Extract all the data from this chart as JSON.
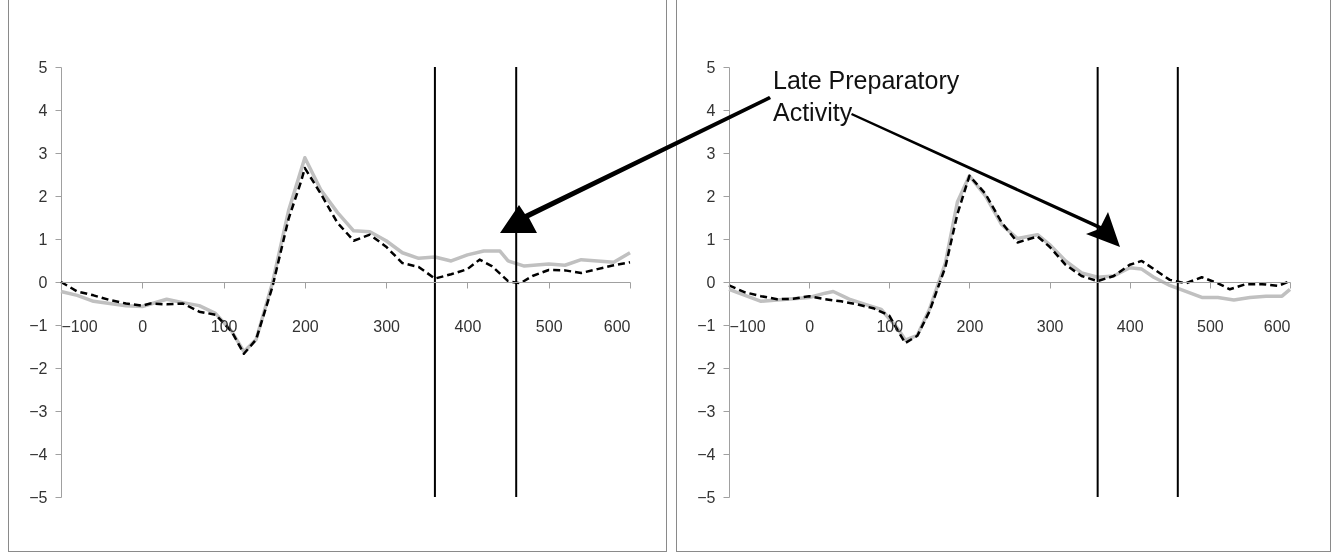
{
  "chart_data": [
    {
      "type": "line",
      "xlim": [
        -100,
        600
      ],
      "xticks": [
        -100,
        0,
        100,
        200,
        300,
        400,
        500,
        600
      ],
      "ylim": [
        -5,
        5
      ],
      "yticks": [
        -5,
        -4,
        -3,
        -2,
        -1,
        0,
        1,
        2,
        3,
        4,
        5
      ],
      "grid": false,
      "ref_lines": [
        {
          "axis": "x",
          "value": 360,
          "color": "#000000"
        },
        {
          "axis": "x",
          "value": 460,
          "color": "#000000"
        }
      ],
      "series": [
        {
          "color": "#c0c0c0",
          "line_style": "solid",
          "x": [
            -100,
            -80,
            -60,
            -40,
            -20,
            0,
            30,
            50,
            70,
            90,
            110,
            125,
            140,
            160,
            180,
            200,
            220,
            240,
            260,
            280,
            300,
            320,
            340,
            360,
            380,
            400,
            420,
            440,
            450,
            470,
            500,
            520,
            540,
            560,
            580,
            600
          ],
          "values": [
            -0.22,
            -0.31,
            -0.45,
            -0.5,
            -0.55,
            -0.57,
            -0.4,
            -0.48,
            -0.55,
            -0.73,
            -1.15,
            -1.62,
            -1.34,
            -0.03,
            1.66,
            2.89,
            2.13,
            1.62,
            1.19,
            1.17,
            0.96,
            0.68,
            0.55,
            0.58,
            0.49,
            0.63,
            0.72,
            0.72,
            0.49,
            0.37,
            0.42,
            0.39,
            0.52,
            0.49,
            0.46,
            0.68
          ]
        },
        {
          "color": "#000000",
          "line_style": "dashed",
          "x": [
            -100,
            -80,
            -60,
            -40,
            -20,
            0,
            10,
            30,
            50,
            70,
            90,
            110,
            125,
            140,
            160,
            180,
            195,
            200,
            220,
            240,
            260,
            280,
            300,
            320,
            340,
            360,
            380,
            400,
            415,
            430,
            450,
            465,
            480,
            500,
            520,
            540,
            560,
            580,
            600
          ],
          "values": [
            0,
            -0.22,
            -0.31,
            -0.42,
            -0.5,
            -0.55,
            -0.5,
            -0.52,
            -0.5,
            -0.69,
            -0.76,
            -1.15,
            -1.67,
            -1.34,
            -0.12,
            1.47,
            2.32,
            2.65,
            2.04,
            1.38,
            0.96,
            1.1,
            0.82,
            0.44,
            0.35,
            0.08,
            0.18,
            0.3,
            0.52,
            0.37,
            0.02,
            -0.03,
            0.14,
            0.28,
            0.27,
            0.21,
            0.3,
            0.39,
            0.46
          ]
        }
      ]
    },
    {
      "type": "line",
      "xlim": [
        -100,
        600
      ],
      "xticks": [
        -100,
        0,
        100,
        200,
        300,
        400,
        500,
        600
      ],
      "ylim": [
        -5,
        5
      ],
      "yticks": [
        -5,
        -4,
        -3,
        -2,
        -1,
        0,
        1,
        2,
        3,
        4,
        5
      ],
      "grid": false,
      "annotations": [
        "Late Preparatory Activity"
      ],
      "ref_lines": [
        {
          "axis": "x",
          "value": 360,
          "color": "#000000"
        },
        {
          "axis": "x",
          "value": 460,
          "color": "#000000"
        }
      ],
      "series": [
        {
          "color": "#c0c0c0",
          "line_style": "solid",
          "x": [
            -100,
            -80,
            -60,
            -40,
            -20,
            0,
            20,
            30,
            50,
            70,
            90,
            110,
            120,
            135,
            150,
            170,
            185,
            200,
            220,
            240,
            260,
            285,
            300,
            320,
            340,
            360,
            380,
            400,
            415,
            430,
            450,
            470,
            490,
            510,
            530,
            550,
            570,
            590,
            600
          ],
          "values": [
            -0.17,
            -0.31,
            -0.45,
            -0.42,
            -0.39,
            -0.36,
            -0.26,
            -0.22,
            -0.4,
            -0.52,
            -0.64,
            -1.07,
            -1.35,
            -1.24,
            -0.64,
            0.44,
            1.86,
            2.47,
            2.0,
            1.34,
            1.01,
            1.1,
            0.87,
            0.49,
            0.21,
            0.11,
            0.14,
            0.33,
            0.3,
            0.11,
            -0.08,
            -0.22,
            -0.36,
            -0.36,
            -0.42,
            -0.36,
            -0.33,
            -0.33,
            -0.17
          ]
        },
        {
          "color": "#000000",
          "line_style": "dashed",
          "x": [
            -100,
            -80,
            -60,
            -40,
            -20,
            0,
            20,
            40,
            60,
            80,
            100,
            110,
            120,
            135,
            150,
            170,
            185,
            200,
            220,
            240,
            260,
            285,
            300,
            320,
            340,
            360,
            380,
            400,
            415,
            430,
            450,
            470,
            490,
            510,
            525,
            545,
            565,
            585,
            600
          ],
          "values": [
            -0.08,
            -0.24,
            -0.33,
            -0.4,
            -0.39,
            -0.33,
            -0.4,
            -0.45,
            -0.52,
            -0.61,
            -0.78,
            -1.11,
            -1.42,
            -1.25,
            -0.69,
            0.35,
            1.58,
            2.47,
            2.05,
            1.39,
            0.92,
            1.06,
            0.82,
            0.4,
            0.14,
            0.02,
            0.14,
            0.4,
            0.49,
            0.3,
            0.05,
            -0.03,
            0.11,
            -0.03,
            -0.17,
            -0.05,
            -0.05,
            -0.09,
            0.02
          ]
        }
      ]
    }
  ]
}
